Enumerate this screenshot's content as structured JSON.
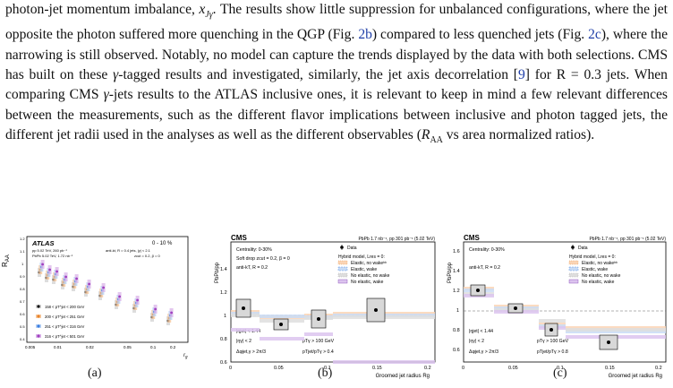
{
  "paragraph": {
    "seg1": "photon-jet momentum imbalance, ",
    "seg1_math": "x",
    "seg1_sub": "Jγ",
    "seg2": ". The results show little suppression for unbalanced configurations, where the jet opposite the photon suffered more quenching in the QGP (Fig. ",
    "ref1": "2b",
    "seg3": ") compared to less quenched jets (Fig. ",
    "ref2": "2c",
    "seg4": "), where the narrowing is still observed. Notably, no model can capture the trends displayed by the data with both selections. CMS has built on these ",
    "seg4_math": "γ",
    "seg5": "-tagged results and investigated, similarly, the jet axis decorrelation [",
    "ref3": "9",
    "seg6": "] for R = 0.3 jets. When comparing CMS ",
    "seg6_math": "γ",
    "seg7": "-jets results to the ATLAS inclusive ones, it is relevant to keep in mind a few relevant differences between the measurements, such as the different flavor implications between inclusive and photon tagged jets, the different jet radii used in the analyses as well as the different observables (",
    "seg7_math": "R",
    "seg7_sub": "AA",
    "seg8": " vs area normalized ratios)."
  },
  "figures": {
    "a": {
      "caption": "(a)",
      "brand": "ATLAS",
      "centrality": "0 - 10 %",
      "lumi1": "pp 5.02 TeV, 260 pb⁻¹",
      "lumi2": "PbPb 5.02 TeV, 1.72 nb⁻¹",
      "jets": "anti-kt, R = 0.4 jets, |y| < 2.1",
      "zcut": "zcut = 0.2, β = 0",
      "ylabel": "R_AA",
      "xlabel": "r_g",
      "legend": [
        "158 < pT^jet < 200 GeV",
        "200 < pT^jet < 251 GeV",
        "251 < pT^jet < 316 GeV",
        "316 < pT^jet < 501 GeV"
      ],
      "colors": [
        "#111111",
        "#e8822a",
        "#3a7de0",
        "#a040c0"
      ]
    },
    "b": {
      "caption": "(b)",
      "brand": "CMS",
      "header": "PbPb 1.7 nb⁻¹, pp 301 pb⁻¹ (5.02 TeV)",
      "centrality": "Centrality: 0-30%",
      "softdrop": "Soft drop zcut = 0.2, β = 0",
      "algo": "anti-kT, R = 0.2",
      "eta_jet": "|ηjet| < 1.44",
      "eta_gamma": "|ηγ| < 2",
      "dphi": "Δφjet,γ > 2π/3",
      "pt_gamma": "pTγ > 100 GeV",
      "xjg": "pTjet/pTγ > 0.4",
      "ylabel": "PbPb/pp",
      "xlabel": "Groomed jet radius Rg",
      "legend_data": "Data",
      "legend_model": "Hybrid model, Lres = 0:",
      "legend_items": [
        "Elastic, no wakeᵇᵇ",
        "Elastic, wake",
        "No elastic, no wake",
        "No elastic, wake"
      ]
    },
    "c": {
      "caption": "(c)",
      "brand": "CMS",
      "header": "PbPb 1.7 nb⁻¹, pp 301 pb⁻¹ (5.02 TeV)",
      "centrality": "Centrality: 0-30%",
      "algo": "anti-kT, R = 0.2",
      "eta_jet": "|ηjet| < 1.44",
      "eta_gamma": "|ηγ| < 2",
      "dphi": "Δφjet,γ > 2π/3",
      "pt_gamma": "pTγ > 100 GeV",
      "xjg": "pTjet/pTγ > 0.8",
      "ylabel": "PbPb/pp",
      "xlabel": "Groomed jet radius Rg",
      "legend_data": "Data",
      "legend_model": "Hybrid model, Lres = 0:",
      "legend_items": [
        "Elastic, no wakeᵇᵇ",
        "Elastic, wake",
        "No elastic, no wake",
        "No elastic, wake"
      ]
    }
  }
}
